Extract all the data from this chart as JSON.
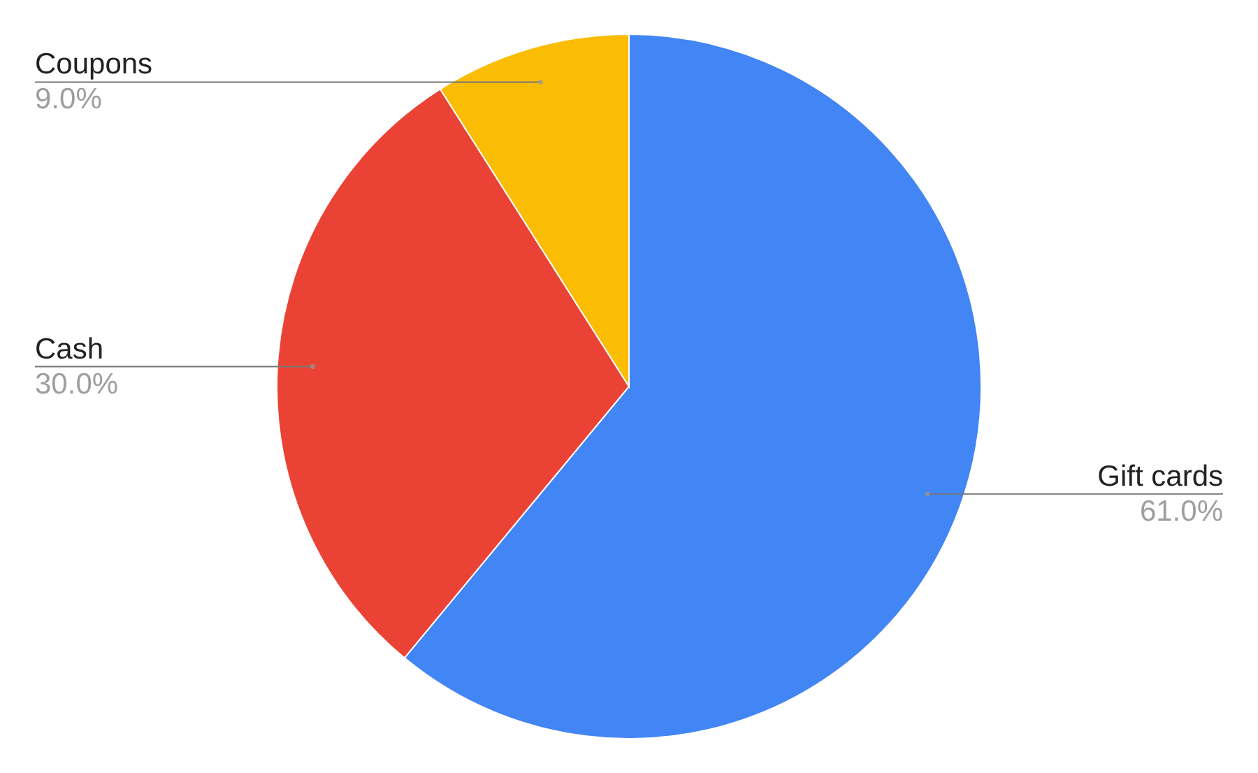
{
  "chart_data": {
    "type": "pie",
    "categories": [
      "Gift cards",
      "Cash",
      "Coupons"
    ],
    "values": [
      61,
      30,
      9
    ],
    "colors": [
      "#4285f4",
      "#ea4335",
      "#fbbc04"
    ],
    "value_labels": [
      "61.0%",
      "30.0%",
      "9.0%"
    ]
  }
}
